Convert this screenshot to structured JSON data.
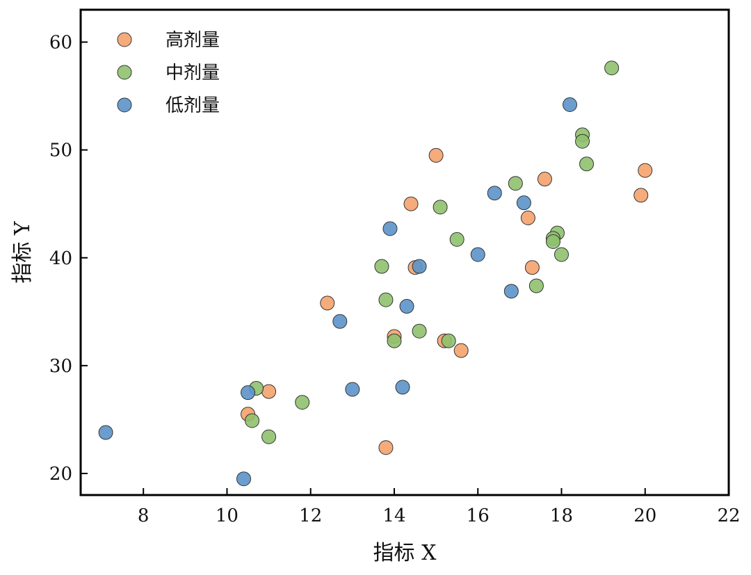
{
  "chart_data": {
    "type": "scatter",
    "xlabel": "指标 X",
    "ylabel": "指标 Y",
    "xlim": [
      6.5,
      22
    ],
    "ylim": [
      18,
      63
    ],
    "xticks": [
      8,
      10,
      12,
      14,
      16,
      18,
      20,
      22
    ],
    "yticks": [
      20,
      30,
      40,
      50,
      60
    ],
    "grid": false,
    "legend_position": "top-left",
    "series": [
      {
        "name": "高剂量",
        "color": "#F4A26B",
        "points": [
          [
            15.0,
            49.5
          ],
          [
            14.4,
            45.0
          ],
          [
            17.6,
            47.3
          ],
          [
            20.0,
            48.1
          ],
          [
            19.9,
            45.8
          ],
          [
            17.2,
            43.7
          ],
          [
            17.3,
            39.1
          ],
          [
            14.5,
            39.1
          ],
          [
            12.4,
            35.8
          ],
          [
            14.0,
            32.7
          ],
          [
            15.2,
            32.3
          ],
          [
            15.6,
            31.4
          ],
          [
            11.0,
            27.6
          ],
          [
            10.5,
            25.5
          ],
          [
            13.8,
            22.4
          ]
        ]
      },
      {
        "name": "中剂量",
        "color": "#8FC16E",
        "points": [
          [
            19.2,
            57.6
          ],
          [
            18.5,
            51.4
          ],
          [
            18.5,
            50.8
          ],
          [
            18.6,
            48.7
          ],
          [
            16.9,
            46.9
          ],
          [
            15.1,
            44.7
          ],
          [
            15.5,
            41.7
          ],
          [
            17.9,
            42.3
          ],
          [
            17.8,
            41.8
          ],
          [
            17.8,
            41.5
          ],
          [
            18.0,
            40.3
          ],
          [
            17.4,
            37.4
          ],
          [
            13.7,
            39.2
          ],
          [
            13.8,
            36.1
          ],
          [
            14.6,
            33.2
          ],
          [
            14.0,
            32.3
          ],
          [
            15.3,
            32.3
          ],
          [
            10.7,
            27.9
          ],
          [
            11.8,
            26.6
          ],
          [
            10.6,
            24.9
          ],
          [
            11.0,
            23.4
          ]
        ]
      },
      {
        "name": "低剂量",
        "color": "#5B93C9",
        "points": [
          [
            18.2,
            54.2
          ],
          [
            16.4,
            46.0
          ],
          [
            17.1,
            45.1
          ],
          [
            13.9,
            42.7
          ],
          [
            16.0,
            40.3
          ],
          [
            14.6,
            39.2
          ],
          [
            16.8,
            36.9
          ],
          [
            14.3,
            35.5
          ],
          [
            12.7,
            34.1
          ],
          [
            13.0,
            27.8
          ],
          [
            14.2,
            28.0
          ],
          [
            10.5,
            27.5
          ],
          [
            7.1,
            23.8
          ],
          [
            10.4,
            19.5
          ]
        ]
      }
    ]
  }
}
